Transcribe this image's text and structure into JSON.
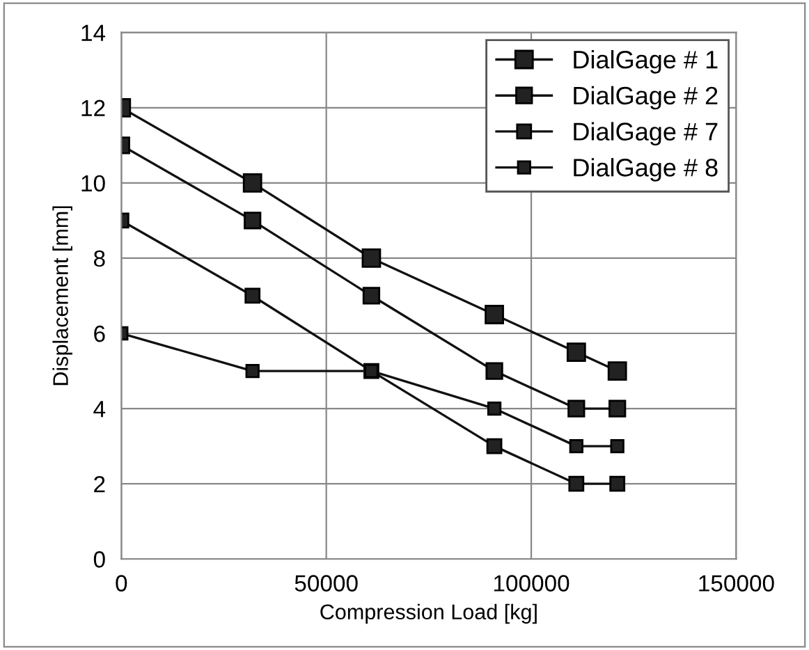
{
  "chart_data": {
    "type": "line",
    "xlabel": "Compression Load [kg]",
    "ylabel": "Displacement [mm]",
    "x": [
      0,
      32000,
      61000,
      91000,
      111000,
      121000
    ],
    "series": [
      {
        "name": "DialGage # 1",
        "color": "#111111",
        "values": [
          12,
          10,
          8,
          6.5,
          5.5,
          5
        ]
      },
      {
        "name": "DialGage # 2",
        "color": "#111111",
        "values": [
          11,
          9,
          7,
          5,
          4,
          4
        ]
      },
      {
        "name": "DialGage # 7",
        "color": "#111111",
        "values": [
          9,
          7,
          5,
          3,
          2,
          2
        ]
      },
      {
        "name": "DialGage # 8",
        "color": "#111111",
        "values": [
          6,
          5,
          5,
          4,
          3,
          3
        ]
      }
    ],
    "xlim": [
      0,
      150000
    ],
    "xticks": [
      0,
      50000,
      100000,
      150000
    ],
    "ylim": [
      0,
      14
    ],
    "yticks": [
      0,
      2,
      4,
      6,
      8,
      10,
      12,
      14
    ],
    "grid": true,
    "legend": "top right",
    "marker": "square",
    "line_style": "solid"
  }
}
